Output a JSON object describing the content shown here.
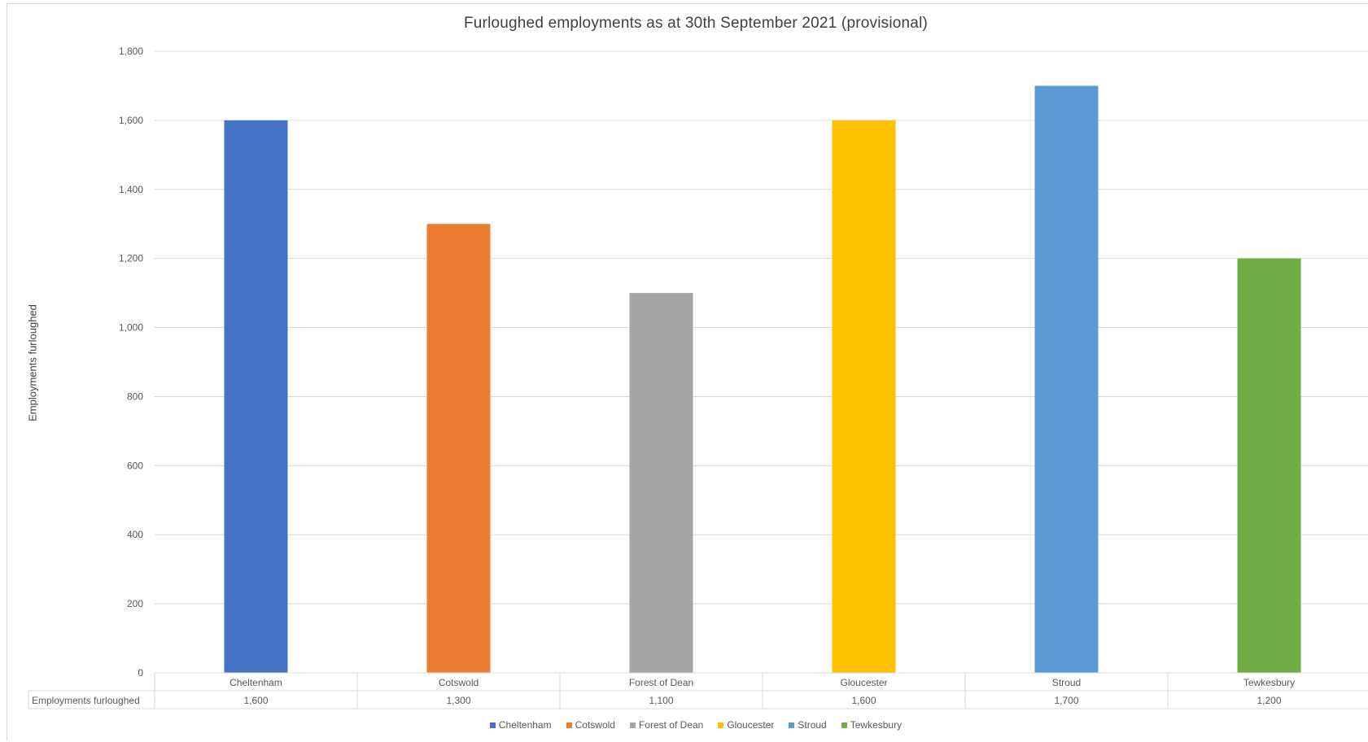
{
  "chart_data": {
    "type": "bar",
    "title": "Furloughed employments as at 30th September 2021 (provisional)",
    "ylabel": "Employments furloughed",
    "xlabel": "",
    "ylim": [
      0,
      1800
    ],
    "yticks": [
      "0",
      "200",
      "400",
      "600",
      "800",
      "1,000",
      "1,200",
      "1,400",
      "1,600",
      "1,800"
    ],
    "categories": [
      "Cheltenham",
      "Cotswold",
      "Forest of Dean",
      "Gloucester",
      "Stroud",
      "Tewkesbury"
    ],
    "values": [
      1600,
      1300,
      1100,
      1600,
      1700,
      1200
    ],
    "value_labels": [
      "1,600",
      "1,300",
      "1,100",
      "1,600",
      "1,700",
      "1,200"
    ],
    "colors": [
      "#4472c4",
      "#ed7d31",
      "#a5a5a5",
      "#ffc000",
      "#5b9bd5",
      "#70ad47"
    ],
    "grid": true,
    "data_table": {
      "row_label": "Employments furloughed"
    },
    "legend": {
      "placement": "bottom",
      "entries": [
        "Cheltenham",
        "Cotswold",
        "Forest of Dean",
        "Gloucester",
        "Stroud",
        "Tewkesbury"
      ]
    }
  }
}
